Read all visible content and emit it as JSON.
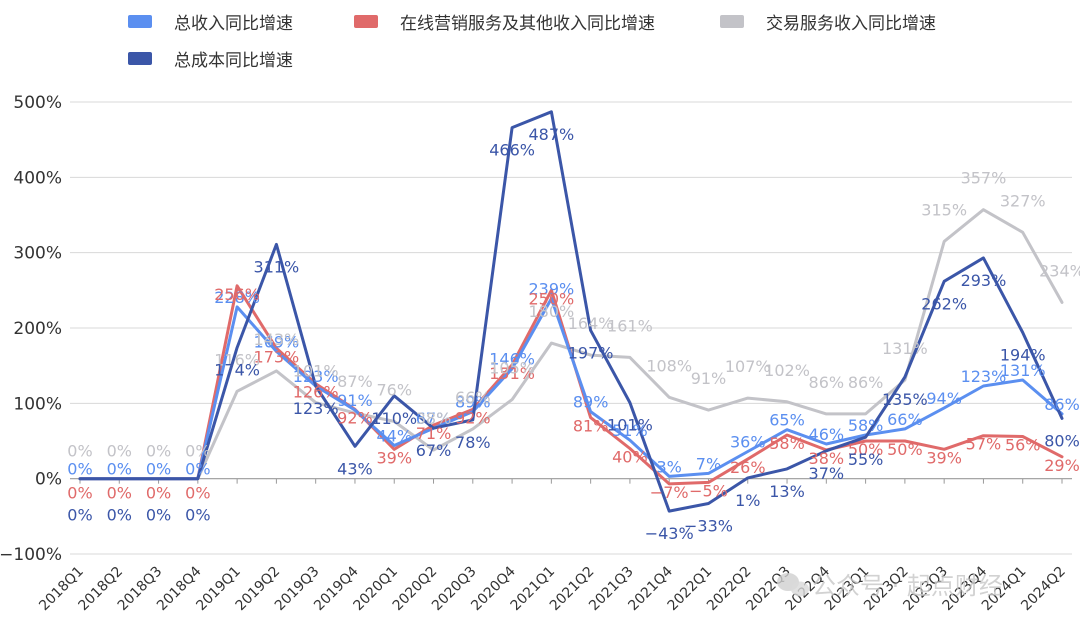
{
  "chart_data": {
    "type": "line",
    "title": "",
    "xlabel": "",
    "ylabel": "",
    "ylim": [
      -100,
      500
    ],
    "yticks": [
      -100,
      0,
      100,
      200,
      300,
      400,
      500
    ],
    "ytick_suffix": "%",
    "grid": true,
    "legend_position": "top",
    "categories": [
      "2018Q1",
      "2018Q2",
      "2018Q3",
      "2018Q4",
      "2019Q1",
      "2019Q2",
      "2019Q3",
      "2019Q4",
      "2020Q1",
      "2020Q2",
      "2020Q3",
      "2020Q4",
      "2021Q1",
      "2021Q2",
      "2021Q3",
      "2021Q4",
      "2022Q1",
      "2022Q2",
      "2022Q3",
      "2022Q4",
      "2023Q1",
      "2023Q2",
      "2023Q3",
      "2023Q4",
      "2024Q1",
      "2024Q2"
    ],
    "series": [
      {
        "name": "总收入同比增速",
        "color": "#5b8ff0",
        "values": [
          0,
          0,
          0,
          0,
          228,
          169,
          123,
          91,
          44,
          67,
          89,
          146,
          239,
          89,
          51,
          3,
          7,
          36,
          65,
          46,
          58,
          66,
          94,
          123,
          131,
          86
        ],
        "labels": [
          "0%",
          "0%",
          "0%",
          "0%",
          "228%",
          "169%",
          "123%",
          "91%",
          "44%",
          "67%",
          "89%",
          "146%",
          "239%",
          "89%",
          "51%",
          "3%",
          "7%",
          "36%",
          "65%",
          "46%",
          "58%",
          "66%",
          "94%",
          "123%",
          "131%",
          "86%"
        ]
      },
      {
        "name": "在线营销服务及其他收入同比增速",
        "color": "#e06a6a",
        "values": [
          0,
          0,
          0,
          0,
          256,
          173,
          126,
          92,
          39,
          71,
          92,
          151,
          250,
          81,
          40,
          -7,
          -5,
          26,
          58,
          38,
          50,
          50,
          39,
          57,
          56,
          29
        ],
        "labels": [
          "0%",
          "0%",
          "0%",
          "0%",
          "256%",
          "173%",
          "126%",
          "92%",
          "39%",
          "71%",
          "92%",
          "151%",
          "250%",
          "81%",
          "40%",
          "−7%",
          "−5%",
          "26%",
          "58%",
          "38%",
          "50%",
          "50%",
          "39%",
          "57%",
          "56%",
          "29%"
        ]
      },
      {
        "name": "交易服务收入同比增速",
        "color": "#c3c3c8",
        "values": [
          0,
          0,
          0,
          0,
          116,
          143,
          101,
          87,
          76,
          38,
          66,
          105,
          180,
          164,
          161,
          108,
          91,
          107,
          102,
          86,
          86,
          131,
          315,
          357,
          327,
          234
        ],
        "labels": [
          "0%",
          "0%",
          "0%",
          "0%",
          "116%",
          "143%",
          "101%",
          "87%",
          "76%",
          "38%",
          "66%",
          "105%",
          "180%",
          "164%",
          "161%",
          "108%",
          "91%",
          "107%",
          "102%",
          "86%",
          "86%",
          "131%",
          "315%",
          "357%",
          "327%",
          "234%"
        ]
      },
      {
        "name": "总成本同比增速",
        "color": "#3b56a8",
        "values": [
          0,
          0,
          0,
          0,
          174,
          311,
          123,
          43,
          110,
          67,
          78,
          466,
          487,
          197,
          101,
          -43,
          -33,
          1,
          13,
          37,
          55,
          135,
          262,
          293,
          194,
          80
        ],
        "labels": [
          "0%",
          "0%",
          "0%",
          "0%",
          "174%",
          "311%",
          "123%",
          "43%",
          "110%",
          "67%",
          "78%",
          "466%",
          "487%",
          "197%",
          "101%",
          "−43%",
          "−33%",
          "1%",
          "13%",
          "37%",
          "55%",
          "135%",
          "262%",
          "293%",
          "194%",
          "80%"
        ]
      }
    ]
  },
  "watermark": {
    "icon": "wechat-icon",
    "text": "公众号 · 起点财经"
  }
}
